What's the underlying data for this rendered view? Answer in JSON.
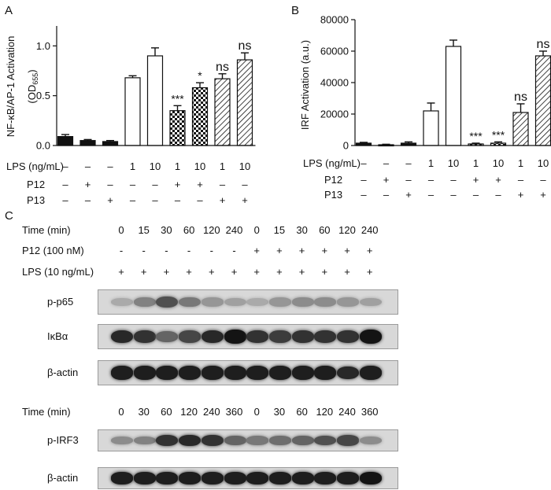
{
  "panels": {
    "a": "A",
    "b": "B",
    "c": "C"
  },
  "chart_data": [
    {
      "type": "bar",
      "panel": "A",
      "ylabel": "NF-κB/AP-1 Activation (OD655)",
      "ylabel_main": "NF-κB/AP-1 Activation",
      "ylabel_open": "(OD",
      "ylabel_sub": "655",
      "ylabel_close": ")",
      "ylim": [
        0,
        1.2
      ],
      "yticks": [
        "0.0",
        "0.5",
        "1.0"
      ],
      "ytick_values": [
        0,
        0.5,
        1.0
      ],
      "categories": [
        "1",
        "2",
        "3",
        "4",
        "5",
        "6",
        "7",
        "8",
        "9"
      ],
      "values": [
        0.09,
        0.05,
        0.04,
        0.68,
        0.9,
        0.35,
        0.58,
        0.67,
        0.86
      ],
      "errors": [
        0.02,
        0.01,
        0.01,
        0.02,
        0.08,
        0.05,
        0.05,
        0.05,
        0.07
      ],
      "fills": [
        "black",
        "black",
        "black",
        "white",
        "white",
        "checker",
        "checker",
        "hatch",
        "hatch"
      ],
      "annotations": [
        "",
        "",
        "",
        "",
        "",
        "***",
        "*",
        "ns",
        "ns"
      ],
      "conditions": {
        "LPS (ng/mL)": [
          "–",
          "–",
          "–",
          "1",
          "10",
          "1",
          "10",
          "1",
          "10"
        ],
        "P12": [
          "–",
          "+",
          "–",
          "–",
          "–",
          "+",
          "+",
          "–",
          "–"
        ],
        "P13": [
          "–",
          "–",
          "+",
          "–",
          "–",
          "–",
          "–",
          "+",
          "+"
        ]
      }
    },
    {
      "type": "bar",
      "panel": "B",
      "ylabel": "IRF Activation (a.u.)",
      "ylim": [
        0,
        80000
      ],
      "yticks": [
        "0",
        "20000",
        "40000",
        "60000",
        "80000"
      ],
      "ytick_values": [
        0,
        20000,
        40000,
        60000,
        80000
      ],
      "categories": [
        "1",
        "2",
        "3",
        "4",
        "5",
        "6",
        "7",
        "8",
        "9"
      ],
      "values": [
        1500,
        500,
        1500,
        22000,
        63000,
        1000,
        1500,
        21000,
        57000
      ],
      "errors": [
        500,
        300,
        800,
        5000,
        4000,
        500,
        800,
        5500,
        3000
      ],
      "fills": [
        "black",
        "black",
        "black",
        "white",
        "white",
        "checker",
        "checker",
        "hatch",
        "hatch"
      ],
      "annotations": [
        "",
        "",
        "",
        "",
        "",
        "***",
        "***",
        "ns",
        "ns"
      ],
      "conditions": {
        "LPS (ng/mL)": [
          "–",
          "–",
          "–",
          "1",
          "10",
          "1",
          "10",
          "1",
          "10"
        ],
        "P12": [
          "–",
          "+",
          "–",
          "–",
          "–",
          "+",
          "+",
          "–",
          "–"
        ],
        "P13": [
          "–",
          "–",
          "+",
          "–",
          "–",
          "–",
          "–",
          "+",
          "+"
        ]
      }
    }
  ],
  "western_top": {
    "rows": [
      {
        "label": "Time (min)",
        "values": [
          "0",
          "15",
          "30",
          "60",
          "120",
          "240",
          "0",
          "15",
          "30",
          "60",
          "120",
          "240"
        ]
      },
      {
        "label": "P12 (100 nM)",
        "values": [
          "-",
          "-",
          "-",
          "-",
          "-",
          "-",
          "+",
          "+",
          "+",
          "+",
          "+",
          "+"
        ]
      },
      {
        "label": "LPS (10 ng/mL)",
        "values": [
          "+",
          "+",
          "+",
          "+",
          "+",
          "+",
          "+",
          "+",
          "+",
          "+",
          "+",
          "+"
        ]
      }
    ],
    "blots": [
      {
        "label": "p-p65",
        "intensity": [
          0.25,
          0.45,
          0.7,
          0.5,
          0.35,
          0.3,
          0.25,
          0.35,
          0.4,
          0.4,
          0.35,
          0.3
        ]
      },
      {
        "label": "IκBα",
        "intensity": [
          0.9,
          0.85,
          0.6,
          0.75,
          0.9,
          1.0,
          0.85,
          0.8,
          0.85,
          0.85,
          0.85,
          1.0
        ]
      },
      {
        "label": "β-actin",
        "intensity": [
          0.95,
          0.95,
          0.95,
          0.95,
          0.95,
          0.95,
          0.95,
          0.95,
          0.95,
          0.95,
          0.9,
          0.95
        ]
      }
    ]
  },
  "western_bottom": {
    "rows": [
      {
        "label": "Time (min)",
        "values": [
          "0",
          "30",
          "60",
          "120",
          "240",
          "360",
          "0",
          "30",
          "60",
          "120",
          "240",
          "360"
        ]
      }
    ],
    "blots": [
      {
        "label": "p-IRF3",
        "intensity": [
          0.4,
          0.45,
          0.85,
          0.9,
          0.85,
          0.6,
          0.5,
          0.55,
          0.6,
          0.7,
          0.75,
          0.4
        ]
      },
      {
        "label": "β-actin",
        "intensity": [
          0.95,
          0.95,
          0.95,
          0.95,
          0.95,
          0.95,
          0.95,
          0.95,
          0.95,
          0.95,
          0.95,
          1.0
        ]
      }
    ]
  }
}
